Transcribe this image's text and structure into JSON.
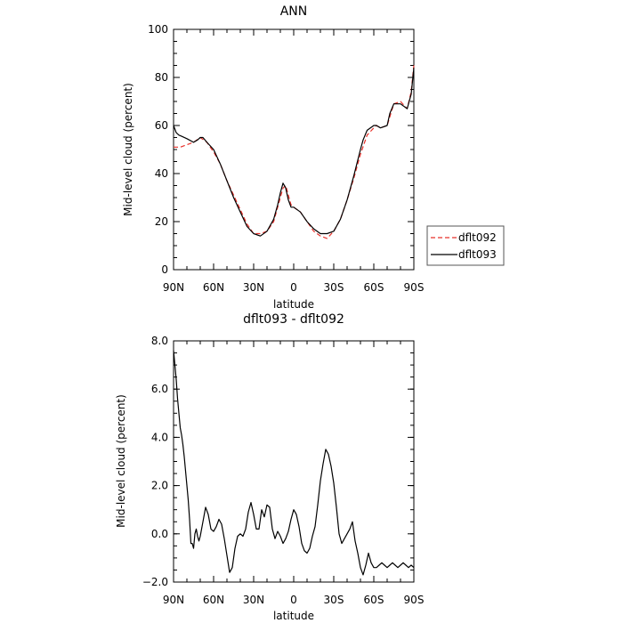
{
  "chart_data": [
    {
      "type": "line",
      "title": "ANN",
      "xlabel": "latitude",
      "ylabel": "Mid-level cloud (percent)",
      "xlim": [
        90,
        -90
      ],
      "ylim": [
        0,
        100
      ],
      "xticks": [
        90,
        60,
        30,
        0,
        -30,
        -60,
        -90
      ],
      "xtick_labels": [
        "90N",
        "60N",
        "30N",
        "0",
        "30S",
        "60S",
        "90S"
      ],
      "yticks": [
        0,
        20,
        40,
        60,
        80,
        100
      ],
      "ytick_labels": [
        "0",
        "20",
        "40",
        "60",
        "80",
        "100"
      ],
      "legend_position": "right",
      "series": [
        {
          "name": "dflt092",
          "color": "#e8302a",
          "dash": "dashed",
          "x": [
            90,
            85,
            80,
            75,
            70,
            65,
            60,
            55,
            50,
            45,
            40,
            35,
            30,
            25,
            20,
            15,
            10,
            8,
            6,
            4,
            2,
            0,
            -5,
            -10,
            -15,
            -20,
            -25,
            -30,
            -35,
            -40,
            -45,
            -50,
            -55,
            -60,
            -62,
            -65,
            -70,
            -75,
            -80,
            -85,
            -88,
            -90
          ],
          "y": [
            51,
            51,
            52,
            53,
            55,
            53,
            49,
            44,
            37,
            31,
            25,
            19,
            15,
            15,
            16,
            20,
            30,
            34,
            35,
            31,
            27,
            26,
            24,
            20,
            16,
            14,
            13,
            16,
            21,
            29,
            38,
            48,
            56,
            59,
            60,
            59,
            60,
            69,
            70,
            67,
            74,
            85
          ]
        },
        {
          "name": "dflt093",
          "color": "#000000",
          "dash": "solid",
          "x": [
            90,
            88,
            86,
            84,
            80,
            75,
            72,
            70,
            68,
            65,
            60,
            55,
            50,
            45,
            40,
            35,
            30,
            25,
            20,
            15,
            12,
            10,
            8,
            6,
            4,
            2,
            0,
            -5,
            -10,
            -15,
            -20,
            -25,
            -30,
            -35,
            -40,
            -45,
            -50,
            -52,
            -55,
            -60,
            -62,
            -65,
            -70,
            -72,
            -75,
            -80,
            -85,
            -88,
            -90
          ],
          "y": [
            60,
            57,
            56,
            55.5,
            54.5,
            53,
            54,
            55,
            55,
            53,
            50,
            44,
            37,
            30,
            24,
            18,
            15,
            14,
            16,
            21,
            27,
            32,
            36,
            34,
            29,
            26,
            26,
            24,
            20,
            17,
            15,
            15,
            16,
            21,
            29,
            39,
            50,
            54,
            58,
            60,
            60,
            59,
            60,
            65,
            69,
            69,
            67,
            73,
            84
          ]
        }
      ]
    },
    {
      "type": "line",
      "title": "dflt093 - dflt092",
      "xlabel": "latitude",
      "ylabel": "Mid-level cloud (percent)",
      "xlim": [
        90,
        -90
      ],
      "ylim": [
        -2,
        8
      ],
      "xticks": [
        90,
        60,
        30,
        0,
        -30,
        -60,
        -90
      ],
      "xtick_labels": [
        "90N",
        "60N",
        "30N",
        "0",
        "30S",
        "60S",
        "90S"
      ],
      "yticks": [
        -2,
        0,
        2,
        4,
        6,
        8
      ],
      "ytick_labels": [
        "−2.0",
        "0.0",
        "2.0",
        "4.0",
        "6.0",
        "8.0"
      ],
      "series": [
        {
          "color": "#000000",
          "dash": "solid",
          "x": [
            90,
            89,
            88,
            87,
            86,
            85,
            84,
            83,
            82,
            81,
            80,
            79,
            78,
            77,
            76,
            75,
            74,
            73,
            72,
            71,
            70,
            68,
            66,
            64,
            62,
            60,
            58,
            56,
            54,
            52,
            50,
            48,
            46,
            44,
            42,
            40,
            38,
            36,
            34,
            32,
            30,
            28,
            26,
            24,
            22,
            20,
            18,
            16,
            14,
            12,
            10,
            8,
            6,
            4,
            2,
            0,
            -2,
            -4,
            -6,
            -8,
            -10,
            -12,
            -14,
            -16,
            -18,
            -20,
            -22,
            -24,
            -26,
            -28,
            -30,
            -32,
            -34,
            -36,
            -38,
            -40,
            -42,
            -44,
            -46,
            -48,
            -50,
            -52,
            -54,
            -56,
            -58,
            -60,
            -62,
            -64,
            -66,
            -68,
            -70,
            -72,
            -74,
            -76,
            -78,
            -80,
            -82,
            -84,
            -86,
            -88,
            -90
          ],
          "y": [
            7.6,
            7.0,
            6.4,
            5.6,
            5.0,
            4.4,
            4.1,
            3.7,
            3.2,
            2.6,
            2.0,
            1.4,
            0.6,
            -0.4,
            -0.4,
            -0.6,
            0.0,
            0.2,
            -0.1,
            -0.3,
            -0.1,
            0.5,
            1.1,
            0.8,
            0.2,
            0.1,
            0.3,
            0.6,
            0.4,
            -0.2,
            -0.9,
            -1.6,
            -1.4,
            -0.6,
            -0.1,
            0.0,
            -0.1,
            0.2,
            0.9,
            1.3,
            0.8,
            0.2,
            0.2,
            1.0,
            0.7,
            1.2,
            1.1,
            0.2,
            -0.2,
            0.1,
            -0.1,
            -0.4,
            -0.2,
            0.1,
            0.6,
            1.0,
            0.8,
            0.3,
            -0.4,
            -0.7,
            -0.8,
            -0.6,
            -0.1,
            0.3,
            1.2,
            2.2,
            2.9,
            3.5,
            3.3,
            2.8,
            2.1,
            1.1,
            0.0,
            -0.4,
            -0.2,
            0.0,
            0.2,
            0.5,
            -0.3,
            -0.8,
            -1.4,
            -1.7,
            -1.3,
            -0.8,
            -1.2,
            -1.4,
            -1.4,
            -1.3,
            -1.2,
            -1.3,
            -1.4,
            -1.3,
            -1.2,
            -1.3,
            -1.4,
            -1.3,
            -1.2,
            -1.3,
            -1.4,
            -1.3,
            -1.4
          ]
        }
      ]
    }
  ]
}
